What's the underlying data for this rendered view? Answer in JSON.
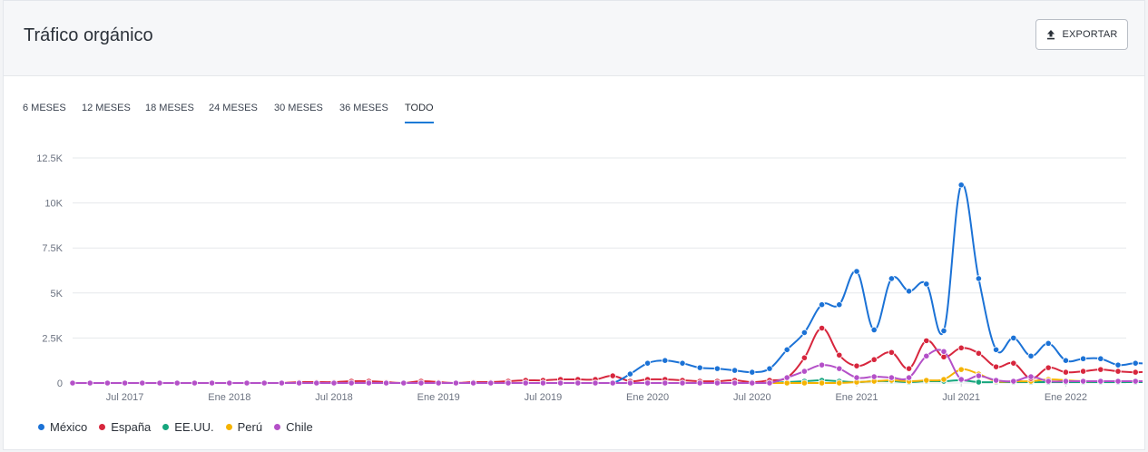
{
  "header": {
    "title": "Tráfico orgánico",
    "export_label": "EXPORTAR"
  },
  "tabs": [
    {
      "label": "6 MESES",
      "active": false
    },
    {
      "label": "12 MESES",
      "active": false
    },
    {
      "label": "18 MESES",
      "active": false
    },
    {
      "label": "24 MESES",
      "active": false
    },
    {
      "label": "30 MESES",
      "active": false
    },
    {
      "label": "36 MESES",
      "active": false
    },
    {
      "label": "TODO",
      "active": true
    }
  ],
  "chart_data": {
    "type": "line",
    "x_start": "2017-04",
    "y_ticks": [
      "0",
      "2.5K",
      "5K",
      "7.5K",
      "10K",
      "12.5K"
    ],
    "ylim": [
      0,
      12500
    ],
    "x_ticks": [
      {
        "label": "Jul 2017",
        "month_index": 3
      },
      {
        "label": "Ene 2018",
        "month_index": 9
      },
      {
        "label": "Jul 2018",
        "month_index": 15
      },
      {
        "label": "Ene 2019",
        "month_index": 21
      },
      {
        "label": "Jul 2019",
        "month_index": 27
      },
      {
        "label": "Ene 2020",
        "month_index": 33
      },
      {
        "label": "Jul 2020",
        "month_index": 39
      },
      {
        "label": "Ene 2021",
        "month_index": 45
      },
      {
        "label": "Jul 2021",
        "month_index": 51
      },
      {
        "label": "Ene 2022",
        "month_index": 57
      }
    ],
    "grid": true,
    "legend_position": "bottom-left",
    "series": [
      {
        "name": "México",
        "color": "#1b72d6",
        "values": [
          0,
          0,
          0,
          0,
          0,
          0,
          0,
          0,
          0,
          0,
          0,
          0,
          0,
          0,
          0,
          0,
          0,
          0,
          0,
          0,
          0,
          0,
          0,
          0,
          0,
          0,
          0,
          0,
          0,
          0,
          0,
          0,
          500,
          1100,
          1250,
          1100,
          850,
          800,
          700,
          600,
          800,
          1850,
          2800,
          4350,
          4350,
          6200,
          2950,
          5800,
          5100,
          5500,
          2900,
          11000,
          5800,
          1850,
          2500,
          1500,
          2200,
          1250,
          1350,
          1350,
          1000,
          1100,
          1050
        ]
      },
      {
        "name": "España",
        "color": "#d7263d",
        "values": [
          0,
          0,
          0,
          0,
          0,
          0,
          0,
          0,
          0,
          0,
          0,
          0,
          0,
          50,
          50,
          50,
          100,
          100,
          50,
          0,
          100,
          50,
          0,
          50,
          50,
          100,
          150,
          150,
          200,
          200,
          200,
          400,
          100,
          200,
          200,
          150,
          100,
          100,
          150,
          50,
          150,
          300,
          1400,
          3050,
          1550,
          950,
          1300,
          1700,
          800,
          2350,
          1450,
          1950,
          1650,
          900,
          1100,
          250,
          850,
          600,
          650,
          750,
          650,
          600,
          650
        ]
      },
      {
        "name": "EE.UU.",
        "color": "#16a67d",
        "values": [
          0,
          0,
          0,
          0,
          0,
          0,
          0,
          0,
          0,
          0,
          0,
          0,
          0,
          0,
          0,
          0,
          0,
          0,
          0,
          0,
          0,
          0,
          0,
          0,
          0,
          0,
          0,
          0,
          0,
          0,
          0,
          0,
          0,
          0,
          0,
          0,
          0,
          0,
          0,
          0,
          0,
          50,
          100,
          150,
          100,
          50,
          100,
          100,
          50,
          100,
          100,
          150,
          50,
          50,
          50,
          50,
          50,
          50,
          50,
          50,
          50,
          50,
          50
        ]
      },
      {
        "name": "Perú",
        "color": "#f5b301",
        "values": [
          0,
          0,
          0,
          0,
          0,
          0,
          0,
          0,
          0,
          0,
          0,
          0,
          0,
          0,
          0,
          0,
          0,
          0,
          0,
          0,
          0,
          0,
          0,
          0,
          0,
          0,
          0,
          0,
          0,
          0,
          0,
          0,
          0,
          0,
          0,
          0,
          0,
          0,
          0,
          0,
          0,
          0,
          0,
          0,
          0,
          50,
          100,
          150,
          100,
          150,
          200,
          750,
          500,
          100,
          100,
          100,
          200,
          150,
          100,
          100,
          100,
          100,
          100
        ]
      },
      {
        "name": "Chile",
        "color": "#b450c8",
        "values": [
          0,
          0,
          0,
          0,
          0,
          0,
          0,
          0,
          0,
          0,
          0,
          0,
          0,
          0,
          0,
          0,
          0,
          0,
          0,
          0,
          0,
          0,
          0,
          0,
          0,
          0,
          0,
          0,
          0,
          0,
          0,
          0,
          0,
          0,
          0,
          0,
          0,
          0,
          0,
          0,
          0,
          300,
          650,
          1000,
          800,
          300,
          350,
          300,
          300,
          1500,
          1750,
          200,
          400,
          150,
          100,
          350,
          100,
          100,
          100,
          100,
          100,
          100,
          100
        ]
      }
    ]
  }
}
